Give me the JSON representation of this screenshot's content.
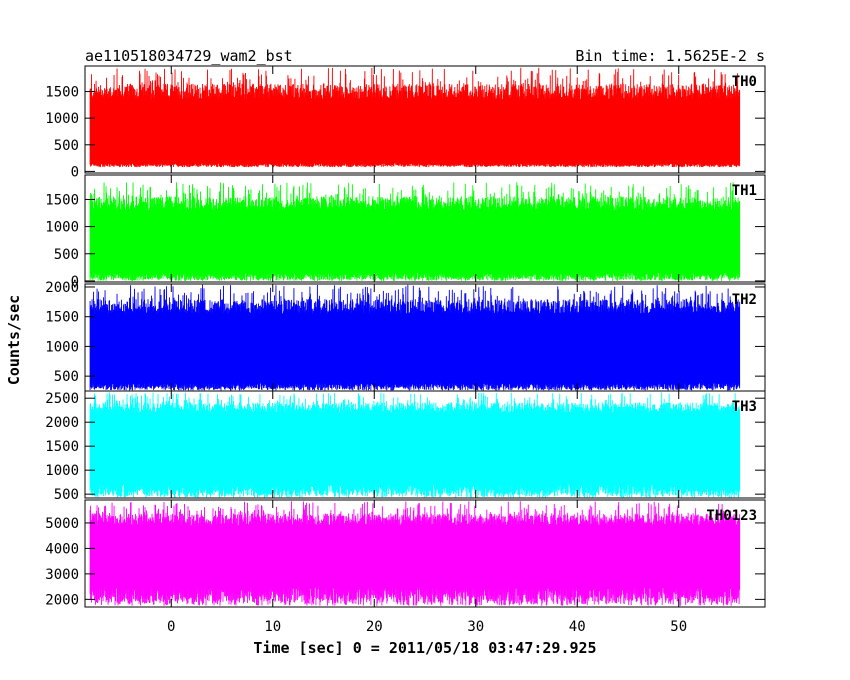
{
  "header": {
    "title": "ae110518034729_wam2_bst",
    "bin_time": "Bin time: 1.5625E-2 s"
  },
  "chart_data": {
    "type": "line",
    "xlabel": "Time [sec] 0 = 2011/05/18 03:47:29.925",
    "ylabel": "Counts/sec",
    "xlim": [
      -8.5,
      58.5
    ],
    "x_range_data": [
      -8,
      56
    ],
    "x_ticks": [
      0,
      10,
      20,
      30,
      40,
      50
    ],
    "panels": [
      {
        "name": "TH0",
        "color": "#ff0000",
        "ylim": [
          -30,
          1980
        ],
        "yticks": [
          0,
          500,
          1000,
          1500
        ],
        "band_low": 150,
        "band_high": 1350,
        "floor": 80,
        "peak": 1950
      },
      {
        "name": "TH1",
        "color": "#00ff00",
        "ylim": [
          -20,
          1950
        ],
        "yticks": [
          0,
          500,
          1000,
          1500
        ],
        "band_low": 150,
        "band_high": 1300,
        "floor": 0,
        "peak": 1820
      },
      {
        "name": "TH2",
        "color": "#0000ff",
        "ylim": [
          250,
          2050
        ],
        "yticks": [
          500,
          1000,
          1500,
          2000
        ],
        "band_low": 380,
        "band_high": 1550,
        "floor": 260,
        "peak": 2040
      },
      {
        "name": "TH3",
        "color": "#00ffff",
        "ylim": [
          420,
          2650
        ],
        "yticks": [
          500,
          1000,
          1500,
          2000,
          2500
        ],
        "band_low": 700,
        "band_high": 2200,
        "floor": 430,
        "peak": 2620
      },
      {
        "name": "TH0123",
        "color": "#ff00ff",
        "ylim": [
          1700,
          5900
        ],
        "yticks": [
          2000,
          3000,
          4000,
          5000
        ],
        "band_low": 2500,
        "band_high": 4900,
        "floor": 1750,
        "peak": 5850
      }
    ]
  }
}
